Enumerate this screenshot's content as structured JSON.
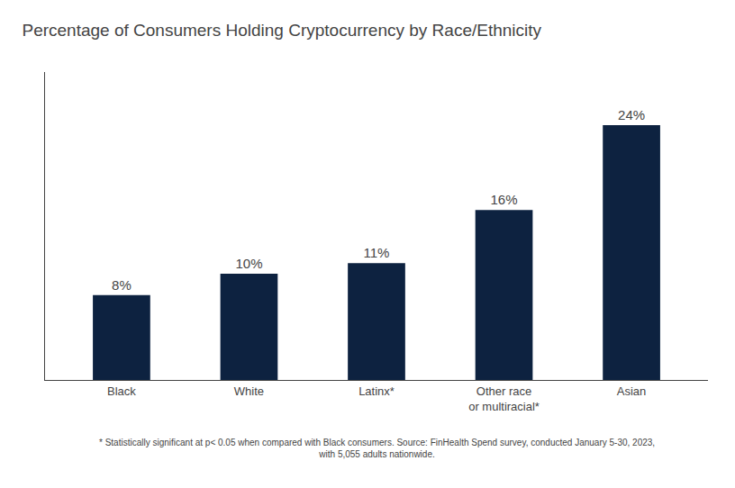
{
  "chart_data": {
    "type": "bar",
    "title": "Percentage of Consumers Holding Cryptocurrency by Race/Ethnicity",
    "categories": [
      "Black",
      "White",
      "Latinx*",
      "Other race\nor multiracial*",
      "Asian"
    ],
    "values": [
      8,
      10,
      11,
      16,
      24
    ],
    "value_labels": [
      "8%",
      "10%",
      "11%",
      "16%",
      "24%"
    ],
    "color": "#0d2240",
    "ylim": [
      0,
      29
    ],
    "grid": false,
    "tick_labels": "x",
    "data_labels": true,
    "annotations": [
      "* Statistically significant at p< 0.05 when compared with Black consumers. Source: FinHealth Spend survey, conducted January 5-30, 2023,",
      "with 5,055 adults nationwide."
    ]
  }
}
